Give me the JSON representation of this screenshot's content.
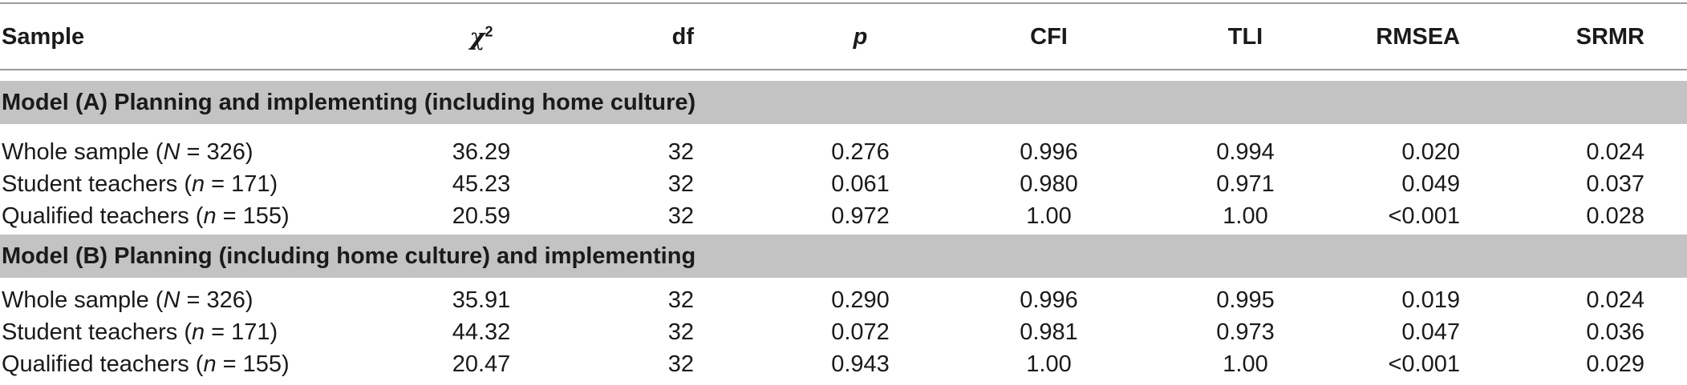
{
  "header": {
    "sample": "Sample",
    "chi_symbol": "χ",
    "chi_sup": "2",
    "df": "df",
    "p": "p",
    "cfi": "CFI",
    "tli": "TLI",
    "rmsea": "RMSEA",
    "srmr": "SRMR"
  },
  "sections": [
    {
      "title": "Model (A) Planning and implementing (including home culture)",
      "rows": [
        {
          "label_pre": "Whole sample (",
          "label_var": "N",
          "label_post": " = 326)",
          "chi2": "36.29",
          "df": "32",
          "p": "0.276",
          "cfi": "0.996",
          "tli": "0.994",
          "rmsea": "0.020",
          "srmr": "0.024"
        },
        {
          "label_pre": "Student teachers (",
          "label_var": "n",
          "label_post": " = 171)",
          "chi2": "45.23",
          "df": "32",
          "p": "0.061",
          "cfi": "0.980",
          "tli": "0.971",
          "rmsea": "0.049",
          "srmr": "0.037"
        },
        {
          "label_pre": "Qualified teachers (",
          "label_var": "n",
          "label_post": " = 155)",
          "chi2": "20.59",
          "df": "32",
          "p": "0.972",
          "cfi": "1.00",
          "tli": "1.00",
          "rmsea": "<0.001",
          "srmr": "0.028"
        }
      ]
    },
    {
      "title": "Model (B) Planning (including home culture) and implementing",
      "rows": [
        {
          "label_pre": "Whole sample (",
          "label_var": "N",
          "label_post": " = 326)",
          "chi2": "35.91",
          "df": "32",
          "p": "0.290",
          "cfi": "0.996",
          "tli": "0.995",
          "rmsea": "0.019",
          "srmr": "0.024"
        },
        {
          "label_pre": "Student teachers (",
          "label_var": "n",
          "label_post": " = 171)",
          "chi2": "44.32",
          "df": "32",
          "p": "0.072",
          "cfi": "0.981",
          "tli": "0.973",
          "rmsea": "0.047",
          "srmr": "0.036"
        },
        {
          "label_pre": "Qualified teachers (",
          "label_var": "n",
          "label_post": " = 155)",
          "chi2": "20.47",
          "df": "32",
          "p": "0.943",
          "cfi": "1.00",
          "tli": "1.00",
          "rmsea": "<0.001",
          "srmr": "0.029"
        }
      ]
    }
  ]
}
